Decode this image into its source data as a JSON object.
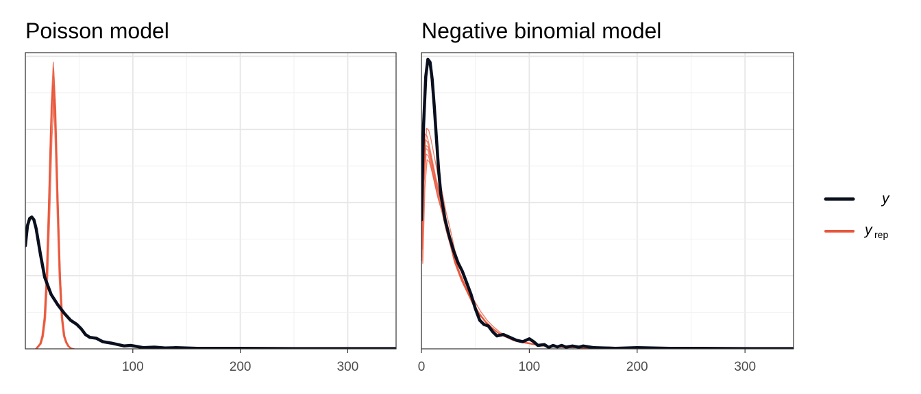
{
  "colors": {
    "y": "#0a0f1e",
    "yrep": "#e8553a",
    "grid_major": "#e6e6e6",
    "grid_minor": "#f0f0f0",
    "panel_border": "#333333",
    "tick_text": "#4d4d4d"
  },
  "legend": {
    "position": "right",
    "items": [
      {
        "key": "y",
        "label": "y",
        "subscript": ""
      },
      {
        "key": "yrep",
        "label": "y",
        "subscript": "rep"
      }
    ]
  },
  "chart_data": [
    {
      "type": "line",
      "subtype": "density-overlay",
      "title": "Poisson model",
      "xlim": [
        0,
        345
      ],
      "ylim": [
        0,
        1.0
      ],
      "x_ticks": [
        100,
        200,
        300
      ],
      "x_tick_labels": [
        "100",
        "200",
        "300"
      ],
      "y_ticks_shown": false,
      "grid": true,
      "y": {
        "x": [
          0,
          2,
          4,
          6,
          8,
          10,
          14,
          18,
          24,
          30,
          36,
          42,
          48,
          52,
          56,
          60,
          66,
          72,
          80,
          86,
          92,
          98,
          104,
          110,
          120,
          130,
          140,
          160,
          200,
          250,
          300,
          345
        ],
        "density": [
          0.36,
          0.43,
          0.455,
          0.46,
          0.45,
          0.42,
          0.33,
          0.25,
          0.19,
          0.155,
          0.125,
          0.1,
          0.085,
          0.07,
          0.05,
          0.04,
          0.037,
          0.025,
          0.02,
          0.015,
          0.01,
          0.012,
          0.008,
          0.004,
          0.006,
          0.003,
          0.004,
          0.002,
          0.002,
          0.001,
          0.001,
          0.001
        ]
      },
      "yrep": {
        "x": [
          10,
          14,
          16,
          18,
          20,
          22,
          24,
          26,
          28,
          30,
          32,
          34,
          36,
          38,
          40,
          42,
          45
        ],
        "draw_peaks": [
          0.95,
          0.9,
          0.98,
          0.87,
          0.93,
          0.92,
          1.0
        ],
        "draw_shifts": [
          0,
          -0.6,
          0.3,
          0.8,
          -0.3,
          0.5,
          0
        ],
        "shape": [
          0.0,
          0.02,
          0.05,
          0.12,
          0.28,
          0.55,
          0.85,
          1.0,
          0.85,
          0.55,
          0.28,
          0.12,
          0.05,
          0.025,
          0.01,
          0.003,
          0.0
        ]
      }
    },
    {
      "type": "line",
      "subtype": "density-overlay",
      "title": "Negative binomial model",
      "xlim": [
        0,
        345
      ],
      "ylim": [
        0,
        1.0
      ],
      "x_ticks": [
        0,
        100,
        200,
        300
      ],
      "x_tick_labels": [
        "0",
        "100",
        "200",
        "300"
      ],
      "y_ticks_shown": false,
      "grid": true,
      "y": {
        "x": [
          0,
          2,
          4,
          6,
          8,
          10,
          12,
          14,
          16,
          18,
          22,
          26,
          30,
          34,
          38,
          42,
          46,
          50,
          54,
          58,
          62,
          66,
          70,
          76,
          82,
          88,
          94,
          100,
          104,
          108,
          114,
          118,
          122,
          126,
          130,
          134,
          140,
          146,
          150,
          160,
          170,
          180,
          200,
          230,
          260,
          300,
          345
        ],
        "density": [
          0.45,
          0.78,
          0.95,
          1.01,
          1.0,
          0.94,
          0.84,
          0.73,
          0.62,
          0.54,
          0.45,
          0.39,
          0.34,
          0.3,
          0.27,
          0.23,
          0.19,
          0.14,
          0.1,
          0.085,
          0.08,
          0.06,
          0.045,
          0.05,
          0.04,
          0.03,
          0.025,
          0.035,
          0.025,
          0.012,
          0.015,
          0.005,
          0.012,
          0.007,
          0.012,
          0.006,
          0.01,
          0.006,
          0.01,
          0.004,
          0.003,
          0.002,
          0.004,
          0.002,
          0.002,
          0.001,
          0.001
        ]
      },
      "yrep": {
        "x": [
          0,
          2,
          4,
          6,
          8,
          10,
          14,
          18,
          22,
          26,
          30,
          36,
          42,
          48,
          54,
          60,
          66,
          72,
          78,
          84,
          90,
          96,
          104,
          112,
          120,
          135,
          150,
          170,
          190,
          220,
          260,
          345
        ],
        "draw_peaks": [
          0.7,
          0.77,
          0.73,
          0.66,
          0.68,
          0.75,
          0.71
        ],
        "draw_shifts": [
          0,
          0.8,
          -0.5,
          1.2,
          0.4,
          -0.8,
          0.2
        ],
        "shape": [
          0.45,
          0.85,
          1.0,
          0.99,
          0.95,
          0.9,
          0.8,
          0.72,
          0.62,
          0.54,
          0.45,
          0.36,
          0.29,
          0.22,
          0.17,
          0.13,
          0.1,
          0.075,
          0.06,
          0.045,
          0.035,
          0.03,
          0.022,
          0.015,
          0.01,
          0.007,
          0.005,
          0.003,
          0.002,
          0.001,
          0.0,
          0.0
        ]
      }
    }
  ]
}
